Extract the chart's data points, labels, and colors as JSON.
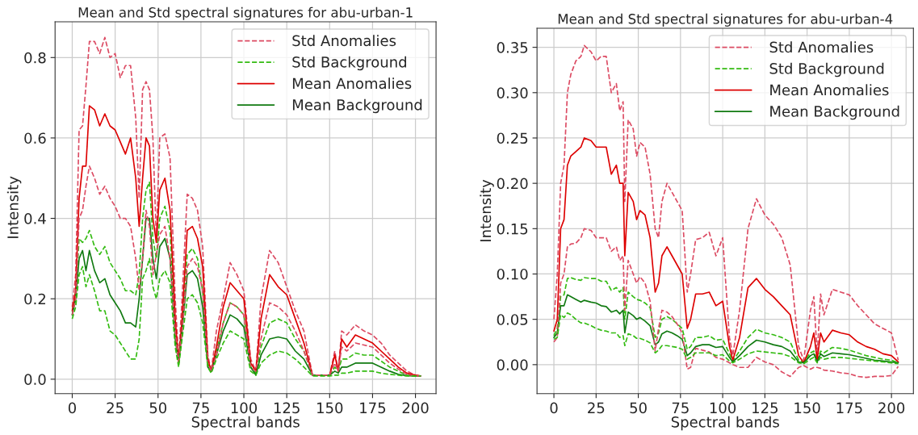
{
  "chart_data": [
    {
      "type": "line",
      "title": "Mean and Std spectral signatures for abu-urban-1",
      "xlabel": "Spectral bands",
      "ylabel": "Intensity",
      "x": [
        0,
        2,
        4,
        6,
        8,
        10,
        13,
        16,
        19,
        22,
        25,
        28,
        31,
        34,
        37,
        39,
        41,
        43,
        45,
        47,
        49,
        51,
        54,
        57,
        60,
        62,
        64,
        67,
        70,
        73,
        76,
        79,
        81,
        84,
        88,
        92,
        96,
        100,
        104,
        107,
        110,
        115,
        120,
        125,
        130,
        135,
        140,
        145,
        150,
        153,
        155,
        157,
        160,
        165,
        170,
        175,
        180,
        185,
        190,
        195,
        200,
        203
      ],
      "xlim": [
        -10,
        212
      ],
      "ylim": [
        -0.036,
        0.889
      ],
      "xticks": [
        0,
        25,
        50,
        75,
        100,
        125,
        150,
        175,
        200
      ],
      "yticks": [
        {
          "value": 0,
          "label": "0.0"
        },
        0.2,
        0.4,
        0.6,
        0.8
      ],
      "grid": true,
      "legend": "top right",
      "series": [
        {
          "name": "Std Anomalies",
          "color": "#dc4b63",
          "line_style": "dashed",
          "values": [
            0.18,
            0.26,
            0.62,
            0.63,
            0.73,
            0.84,
            0.84,
            0.81,
            0.85,
            0.8,
            0.81,
            0.75,
            0.78,
            0.78,
            0.65,
            0.45,
            0.72,
            0.74,
            0.72,
            0.6,
            0.35,
            0.6,
            0.61,
            0.55,
            0.2,
            0.05,
            0.2,
            0.46,
            0.45,
            0.42,
            0.33,
            0.06,
            0.02,
            0.12,
            0.2,
            0.29,
            0.26,
            0.22,
            0.05,
            0.02,
            0.2,
            0.32,
            0.29,
            0.23,
            0.17,
            0.12,
            0.01,
            0.01,
            0.01,
            0.07,
            0.02,
            0.12,
            0.11,
            0.135,
            0.12,
            0.11,
            0.09,
            0.06,
            0.04,
            0.02,
            0.01,
            0.008
          ]
        },
        {
          "name": "Std Background",
          "color": "#33bb11",
          "line_style": "dashed",
          "values": [
            0.16,
            0.21,
            0.35,
            0.34,
            0.35,
            0.37,
            0.33,
            0.31,
            0.33,
            0.29,
            0.27,
            0.25,
            0.22,
            0.22,
            0.21,
            0.26,
            0.4,
            0.47,
            0.49,
            0.35,
            0.3,
            0.4,
            0.43,
            0.37,
            0.12,
            0.04,
            0.14,
            0.31,
            0.325,
            0.3,
            0.22,
            0.04,
            0.02,
            0.07,
            0.14,
            0.19,
            0.18,
            0.16,
            0.03,
            0.015,
            0.08,
            0.14,
            0.15,
            0.14,
            0.1,
            0.07,
            0.01,
            0.01,
            0.01,
            0.03,
            0.02,
            0.05,
            0.05,
            0.065,
            0.06,
            0.06,
            0.045,
            0.03,
            0.02,
            0.01,
            0.008,
            0.008
          ]
        },
        {
          "name": "Mean Anomalies",
          "color": "#dd0000",
          "line_style": "solid",
          "values": [
            0.17,
            0.22,
            0.45,
            0.53,
            0.53,
            0.68,
            0.67,
            0.63,
            0.66,
            0.63,
            0.62,
            0.59,
            0.56,
            0.6,
            0.5,
            0.38,
            0.5,
            0.6,
            0.58,
            0.4,
            0.34,
            0.47,
            0.5,
            0.42,
            0.15,
            0.04,
            0.15,
            0.37,
            0.38,
            0.35,
            0.28,
            0.05,
            0.02,
            0.08,
            0.18,
            0.24,
            0.22,
            0.2,
            0.04,
            0.02,
            0.15,
            0.26,
            0.23,
            0.21,
            0.15,
            0.09,
            0.01,
            0.01,
            0.01,
            0.06,
            0.02,
            0.1,
            0.08,
            0.11,
            0.1,
            0.09,
            0.07,
            0.05,
            0.03,
            0.015,
            0.01,
            0.008
          ]
        },
        {
          "name": "Mean Background",
          "color": "#117a11",
          "line_style": "solid",
          "values": [
            0.16,
            0.2,
            0.3,
            0.32,
            0.27,
            0.32,
            0.27,
            0.24,
            0.25,
            0.21,
            0.19,
            0.17,
            0.14,
            0.14,
            0.13,
            0.2,
            0.3,
            0.4,
            0.4,
            0.3,
            0.25,
            0.33,
            0.35,
            0.3,
            0.1,
            0.04,
            0.12,
            0.26,
            0.27,
            0.25,
            0.18,
            0.03,
            0.02,
            0.06,
            0.12,
            0.16,
            0.15,
            0.13,
            0.03,
            0.01,
            0.06,
            0.1,
            0.105,
            0.1,
            0.07,
            0.05,
            0.01,
            0.01,
            0.01,
            0.02,
            0.015,
            0.03,
            0.03,
            0.04,
            0.04,
            0.04,
            0.03,
            0.02,
            0.012,
            0.009,
            0.008,
            0.008
          ]
        },
        {
          "color": "#dc4b63",
          "line_style": "dashed",
          "values": [
            0.16,
            0.2,
            0.4,
            0.42,
            0.48,
            0.53,
            0.5,
            0.46,
            0.48,
            0.45,
            0.43,
            0.4,
            0.4,
            0.38,
            0.3,
            0.22,
            0.3,
            0.42,
            0.38,
            0.26,
            0.31,
            0.36,
            0.38,
            0.3,
            0.12,
            0.04,
            0.12,
            0.28,
            0.3,
            0.28,
            0.22,
            0.04,
            0.02,
            0.06,
            0.14,
            0.19,
            0.18,
            0.16,
            0.03,
            0.02,
            0.1,
            0.19,
            0.18,
            0.16,
            0.12,
            0.07,
            0.01,
            0.01,
            0.01,
            0.04,
            0.02,
            0.08,
            0.07,
            0.09,
            0.085,
            0.08,
            0.06,
            0.04,
            0.025,
            0.012,
            0.008,
            0.008
          ]
        },
        {
          "color": "#33bb11",
          "line_style": "dashed",
          "values": [
            0.15,
            0.18,
            0.26,
            0.28,
            0.23,
            0.26,
            0.22,
            0.17,
            0.17,
            0.12,
            0.11,
            0.09,
            0.07,
            0.05,
            0.05,
            0.1,
            0.25,
            0.27,
            0.3,
            0.23,
            0.2,
            0.25,
            0.27,
            0.24,
            0.08,
            0.03,
            0.1,
            0.2,
            0.21,
            0.19,
            0.14,
            0.03,
            0.015,
            0.05,
            0.09,
            0.12,
            0.11,
            0.1,
            0.02,
            0.01,
            0.04,
            0.06,
            0.07,
            0.065,
            0.05,
            0.03,
            0.008,
            0.008,
            0.008,
            0.01,
            0.01,
            0.015,
            0.015,
            0.02,
            0.02,
            0.02,
            0.015,
            0.012,
            0.01,
            0.008,
            0.008,
            0.008
          ]
        }
      ]
    },
    {
      "type": "line",
      "title": "Mean and Std spectral signatures for abu-urban-4",
      "xlabel": "Spectral bands",
      "ylabel": "Intensity",
      "x": [
        0,
        2,
        4,
        6,
        8,
        10,
        13,
        16,
        18,
        22,
        25,
        28,
        31,
        34,
        37,
        39,
        41,
        42,
        44,
        47,
        49,
        51,
        54,
        57,
        60,
        62,
        64,
        67,
        70,
        73,
        76,
        79,
        81,
        84,
        88,
        92,
        96,
        100,
        104,
        106,
        110,
        115,
        120,
        125,
        130,
        135,
        140,
        145,
        148,
        152,
        154,
        156,
        158,
        160,
        165,
        170,
        175,
        180,
        185,
        190,
        195,
        200,
        204
      ],
      "xlim": [
        -10,
        213
      ],
      "ylim": [
        -0.032,
        0.371
      ],
      "xticks": [
        0,
        25,
        50,
        75,
        100,
        125,
        150,
        175,
        200
      ],
      "yticks": [
        {
          "value": 0,
          "label": "0.00"
        },
        0.05,
        {
          "value": 0.1,
          "label": "0.10"
        },
        0.15,
        {
          "value": 0.2,
          "label": "0.20"
        },
        0.25,
        {
          "value": 0.3,
          "label": "0.30"
        },
        0.35
      ],
      "grid": true,
      "legend": "top right",
      "series": [
        {
          "name": "Std Anomalies",
          "color": "#dc4b63",
          "line_style": "dashed",
          "values": [
            0.05,
            0.1,
            0.2,
            0.22,
            0.3,
            0.32,
            0.335,
            0.34,
            0.352,
            0.345,
            0.335,
            0.34,
            0.34,
            0.3,
            0.31,
            0.28,
            0.29,
            0.18,
            0.27,
            0.26,
            0.23,
            0.245,
            0.24,
            0.21,
            0.15,
            0.14,
            0.18,
            0.2,
            0.19,
            0.18,
            0.17,
            0.08,
            0.1,
            0.138,
            0.14,
            0.146,
            0.12,
            0.14,
            0.03,
            0.01,
            0.06,
            0.15,
            0.183,
            0.165,
            0.155,
            0.14,
            0.11,
            0.02,
            0.005,
            0.06,
            0.075,
            0.01,
            0.078,
            0.055,
            0.083,
            0.08,
            0.077,
            0.065,
            0.055,
            0.045,
            0.04,
            0.035,
            0.005
          ]
        },
        {
          "name": "Std Background",
          "color": "#33bb11",
          "line_style": "dashed",
          "values": [
            0.032,
            0.04,
            0.075,
            0.077,
            0.095,
            0.096,
            0.094,
            0.093,
            0.096,
            0.095,
            0.095,
            0.092,
            0.092,
            0.082,
            0.085,
            0.08,
            0.085,
            0.05,
            0.08,
            0.075,
            0.072,
            0.071,
            0.068,
            0.063,
            0.03,
            0.035,
            0.05,
            0.053,
            0.05,
            0.045,
            0.04,
            0.017,
            0.02,
            0.03,
            0.03,
            0.032,
            0.027,
            0.028,
            0.012,
            0.004,
            0.015,
            0.03,
            0.039,
            0.035,
            0.033,
            0.03,
            0.025,
            0.005,
            0.003,
            0.013,
            0.015,
            0.004,
            0.015,
            0.013,
            0.019,
            0.018,
            0.016,
            0.013,
            0.01,
            0.008,
            0.006,
            0.005,
            0.002
          ]
        },
        {
          "name": "Mean Anomalies",
          "color": "#dd0000",
          "line_style": "solid",
          "values": [
            0.037,
            0.05,
            0.15,
            0.16,
            0.22,
            0.23,
            0.235,
            0.24,
            0.25,
            0.247,
            0.24,
            0.24,
            0.24,
            0.21,
            0.22,
            0.2,
            0.2,
            0.12,
            0.19,
            0.18,
            0.16,
            0.17,
            0.165,
            0.14,
            0.08,
            0.09,
            0.12,
            0.13,
            0.12,
            0.11,
            0.1,
            0.04,
            0.05,
            0.078,
            0.078,
            0.08,
            0.065,
            0.07,
            0.02,
            0.005,
            0.03,
            0.085,
            0.095,
            0.083,
            0.075,
            0.065,
            0.055,
            0.01,
            0.002,
            0.02,
            0.035,
            0.005,
            0.035,
            0.025,
            0.038,
            0.035,
            0.033,
            0.025,
            0.02,
            0.017,
            0.012,
            0.01,
            0.003
          ]
        },
        {
          "name": "Mean Background",
          "color": "#117a11",
          "line_style": "solid",
          "values": [
            0.03,
            0.035,
            0.065,
            0.065,
            0.077,
            0.075,
            0.072,
            0.069,
            0.071,
            0.069,
            0.068,
            0.065,
            0.064,
            0.058,
            0.06,
            0.056,
            0.06,
            0.035,
            0.058,
            0.054,
            0.05,
            0.052,
            0.048,
            0.043,
            0.022,
            0.025,
            0.034,
            0.037,
            0.035,
            0.032,
            0.028,
            0.01,
            0.013,
            0.02,
            0.022,
            0.022,
            0.019,
            0.02,
            0.008,
            0.003,
            0.01,
            0.02,
            0.027,
            0.025,
            0.022,
            0.02,
            0.015,
            0.003,
            0.002,
            0.01,
            0.012,
            0.003,
            0.012,
            0.009,
            0.013,
            0.012,
            0.011,
            0.009,
            0.007,
            0.005,
            0.004,
            0.003,
            0.002
          ]
        },
        {
          "color": "#dc4b63",
          "line_style": "dashed",
          "values": [
            0.025,
            0.03,
            0.09,
            0.1,
            0.13,
            0.133,
            0.134,
            0.14,
            0.15,
            0.148,
            0.14,
            0.14,
            0.14,
            0.125,
            0.13,
            0.115,
            0.12,
            0.06,
            0.115,
            0.1,
            0.09,
            0.097,
            0.09,
            0.07,
            0.015,
            0.04,
            0.06,
            0.058,
            0.053,
            0.045,
            0.035,
            -0.005,
            -0.003,
            0.018,
            0.016,
            0.014,
            0.008,
            0.006,
            0.002,
            0,
            -0.003,
            -0.003,
            0.008,
            0.003,
            0,
            -0.008,
            -0.013,
            -0.003,
            -0.001,
            -0.005,
            -0.003,
            -0.003,
            -0.004,
            -0.006,
            -0.007,
            -0.009,
            -0.01,
            -0.013,
            -0.014,
            -0.013,
            -0.013,
            -0.012,
            -0.002
          ]
        },
        {
          "color": "#33bb11",
          "line_style": "dashed",
          "values": [
            0.028,
            0.03,
            0.055,
            0.052,
            0.057,
            0.055,
            0.05,
            0.046,
            0.046,
            0.043,
            0.04,
            0.038,
            0.037,
            0.035,
            0.035,
            0.03,
            0.032,
            0.021,
            0.034,
            0.032,
            0.029,
            0.029,
            0.027,
            0.024,
            0.013,
            0.016,
            0.021,
            0.021,
            0.02,
            0.019,
            0.017,
            0.006,
            0.008,
            0.013,
            0.013,
            0.013,
            0.01,
            0.011,
            0.004,
            0.002,
            0.006,
            0.012,
            0.015,
            0.014,
            0.013,
            0.012,
            0.009,
            0.002,
            0.001,
            0.006,
            0.008,
            0.002,
            0.008,
            0.006,
            0.008,
            0.008,
            0.007,
            0.006,
            0.005,
            0.004,
            0.003,
            0.002,
            0.001
          ]
        }
      ]
    }
  ]
}
